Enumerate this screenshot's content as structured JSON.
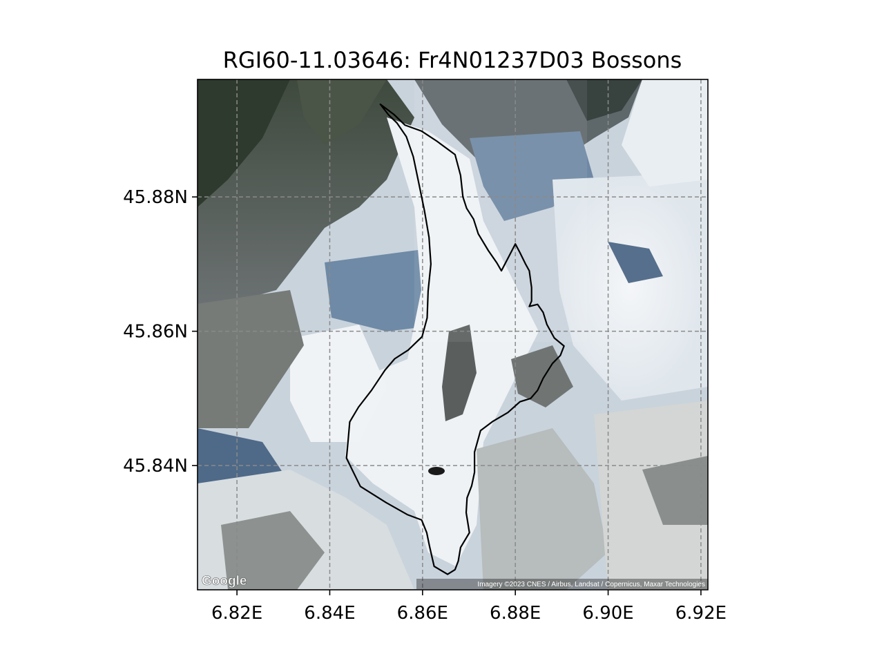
{
  "title": "RGI60-11.03646: Fr4N01237D03 Bossons",
  "map": {
    "type": "glacier-outline-over-satellite",
    "lon_range": [
      6.8115,
      6.9215
    ],
    "lat_range": [
      45.8215,
      45.8975
    ],
    "x_ticks": [
      {
        "value": 6.82,
        "label": "6.82E"
      },
      {
        "value": 6.84,
        "label": "6.84E"
      },
      {
        "value": 6.86,
        "label": "6.86E"
      },
      {
        "value": 6.88,
        "label": "6.88E"
      },
      {
        "value": 6.9,
        "label": "6.90E"
      },
      {
        "value": 6.92,
        "label": "6.92E"
      }
    ],
    "y_ticks": [
      {
        "value": 45.84,
        "label": "45.84N"
      },
      {
        "value": 45.86,
        "label": "45.86N"
      },
      {
        "value": 45.88,
        "label": "45.88N"
      }
    ],
    "grid": true,
    "outline_color": "#000000",
    "glacier_outline": [
      [
        6.8509,
        45.8938
      ],
      [
        6.8538,
        45.8923
      ],
      [
        6.8562,
        45.8907
      ],
      [
        6.8598,
        45.8898
      ],
      [
        6.8631,
        45.8883
      ],
      [
        6.867,
        45.8863
      ],
      [
        6.8682,
        45.8832
      ],
      [
        6.8687,
        45.88
      ],
      [
        6.8695,
        45.8783
      ],
      [
        6.871,
        45.8767
      ],
      [
        6.872,
        45.8745
      ],
      [
        6.8742,
        45.872
      ],
      [
        6.876,
        45.8702
      ],
      [
        6.877,
        45.869
      ],
      [
        6.8785,
        45.871
      ],
      [
        6.88,
        45.873
      ],
      [
        6.881,
        45.8717
      ],
      [
        6.8822,
        45.87
      ],
      [
        6.883,
        45.869
      ],
      [
        6.8835,
        45.8665
      ],
      [
        6.8835,
        45.8645
      ],
      [
        6.883,
        45.8637
      ],
      [
        6.8848,
        45.864
      ],
      [
        6.886,
        45.8628
      ],
      [
        6.8868,
        45.861
      ],
      [
        6.8884,
        45.859
      ],
      [
        6.8905,
        45.8578
      ],
      [
        6.8897,
        45.8564
      ],
      [
        6.888,
        45.8552
      ],
      [
        6.886,
        45.853
      ],
      [
        6.8848,
        45.8512
      ],
      [
        6.8833,
        45.85
      ],
      [
        6.881,
        45.8495
      ],
      [
        6.8784,
        45.8479
      ],
      [
        6.8752,
        45.8466
      ],
      [
        6.8725,
        45.8452
      ],
      [
        6.8712,
        45.842
      ],
      [
        6.8712,
        45.839
      ],
      [
        6.8706,
        45.837
      ],
      [
        6.8696,
        45.8352
      ],
      [
        6.8694,
        45.833
      ],
      [
        6.8701,
        45.83
      ],
      [
        6.8682,
        45.8278
      ],
      [
        6.8677,
        45.8258
      ],
      [
        6.867,
        45.8245
      ],
      [
        6.8654,
        45.8238
      ],
      [
        6.8625,
        45.825
      ],
      [
        6.8615,
        45.828
      ],
      [
        6.8609,
        45.83
      ],
      [
        6.8598,
        45.8319
      ],
      [
        6.8567,
        45.8327
      ],
      [
        6.8521,
        45.8345
      ],
      [
        6.8466,
        45.8369
      ],
      [
        6.8436,
        45.8411
      ],
      [
        6.844,
        45.844
      ],
      [
        6.8443,
        45.8465
      ],
      [
        6.8462,
        45.8487
      ],
      [
        6.849,
        45.8512
      ],
      [
        6.8519,
        45.8542
      ],
      [
        6.854,
        45.8559
      ],
      [
        6.8569,
        45.8572
      ],
      [
        6.8599,
        45.8592
      ],
      [
        6.861,
        45.862
      ],
      [
        6.8612,
        45.866
      ],
      [
        6.8618,
        45.87
      ],
      [
        6.8614,
        45.874
      ],
      [
        6.8604,
        45.878
      ],
      [
        6.8592,
        45.882
      ],
      [
        6.858,
        45.886
      ],
      [
        6.8565,
        45.889
      ],
      [
        6.8545,
        45.891
      ],
      [
        6.8527,
        45.8922
      ]
    ]
  },
  "attribution": {
    "logo": "Google",
    "credit": "Imagery ©2023 CNES / Airbus, Landsat / Copernicus, Maxar Technologies"
  }
}
